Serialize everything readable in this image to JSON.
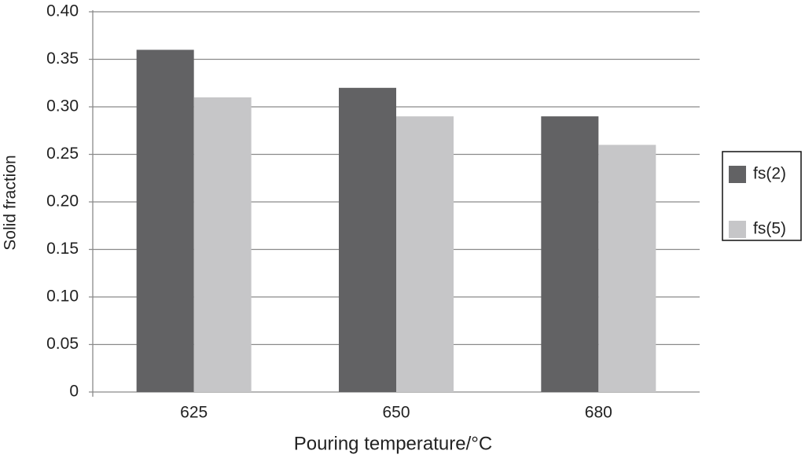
{
  "chart_data": {
    "type": "bar",
    "x_label": "Pouring temperature/°C",
    "y_label": "Solid fraction",
    "categories": [
      "625",
      "650",
      "680"
    ],
    "series": [
      {
        "name": "fs(2)",
        "color": "#626264",
        "values": [
          0.36,
          0.32,
          0.29
        ]
      },
      {
        "name": "fs(5)",
        "color": "#c6c6c8",
        "values": [
          0.31,
          0.29,
          0.26
        ]
      }
    ],
    "ylim": [
      0,
      0.4
    ],
    "yticks": [
      0,
      0.05,
      {
        "value": 0.1,
        "label": "0.10"
      },
      0.15,
      {
        "value": 0.2,
        "label": "0.20"
      },
      0.25,
      {
        "value": 0.3,
        "label": "0.30"
      },
      0.35,
      {
        "value": 0.4,
        "label": "0.40"
      }
    ],
    "grid": true,
    "legend": "right"
  }
}
